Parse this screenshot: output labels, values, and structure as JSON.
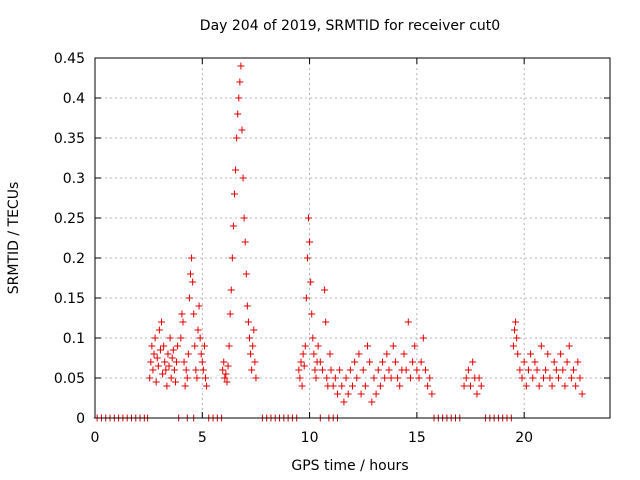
{
  "chart_data": {
    "type": "scatter",
    "title": "Day 204 of 2019, SRMTID for receiver cut0",
    "xlabel": "GPS time / hours",
    "ylabel": "SRMTID / TECUs",
    "xlim": [
      0,
      24
    ],
    "ylim": [
      0,
      0.45
    ],
    "xticks": [
      0,
      5,
      10,
      15,
      20
    ],
    "xtick_labels": [
      "0",
      "5",
      "10",
      "15",
      "20"
    ],
    "yticks": [
      0,
      0.05,
      0.1,
      0.15,
      0.2,
      0.25,
      0.3,
      0.35,
      0.4,
      0.45
    ],
    "ytick_labels": [
      "0",
      "0.05",
      "0.1",
      "0.15",
      "0.2",
      "0.25",
      "0.3",
      "0.35",
      "0.4",
      "0.45"
    ],
    "grid": true,
    "marker": "+",
    "marker_color": "#e00000",
    "series": [
      {
        "name": "SRMTID",
        "points": [
          [
            0.1,
            0
          ],
          [
            0.3,
            0
          ],
          [
            0.5,
            0
          ],
          [
            0.7,
            0
          ],
          [
            0.9,
            0
          ],
          [
            1.1,
            0
          ],
          [
            1.3,
            0
          ],
          [
            1.5,
            0
          ],
          [
            1.7,
            0
          ],
          [
            1.9,
            0
          ],
          [
            2.1,
            0
          ],
          [
            2.3,
            0
          ],
          [
            2.45,
            0
          ],
          [
            2.55,
            0.05
          ],
          [
            2.6,
            0.07
          ],
          [
            2.65,
            0.09
          ],
          [
            2.7,
            0.06
          ],
          [
            2.75,
            0.08
          ],
          [
            2.8,
            0.1
          ],
          [
            2.85,
            0.045
          ],
          [
            2.9,
            0.075
          ],
          [
            2.95,
            0.065
          ],
          [
            3.0,
            0.11
          ],
          [
            3.05,
            0.085
          ],
          [
            3.1,
            0.12
          ],
          [
            3.15,
            0.055
          ],
          [
            3.2,
            0.09
          ],
          [
            3.25,
            0.07
          ],
          [
            3.3,
            0.06
          ],
          [
            3.35,
            0.04
          ],
          [
            3.4,
            0.08
          ],
          [
            3.45,
            0.065
          ],
          [
            3.5,
            0.1
          ],
          [
            3.55,
            0.05
          ],
          [
            3.6,
            0.075
          ],
          [
            3.65,
            0.085
          ],
          [
            3.7,
            0.06
          ],
          [
            3.75,
            0.045
          ],
          [
            3.8,
            0.07
          ],
          [
            3.85,
            0.09
          ],
          [
            3.9,
            0
          ],
          [
            4.0,
            0.1
          ],
          [
            4.05,
            0.13
          ],
          [
            4.1,
            0.12
          ],
          [
            4.15,
            0.07
          ],
          [
            4.2,
            0.04
          ],
          [
            4.25,
            0.06
          ],
          [
            4.3,
            0.05
          ],
          [
            4.3,
            0
          ],
          [
            4.35,
            0.08
          ],
          [
            4.4,
            0.15
          ],
          [
            4.45,
            0.18
          ],
          [
            4.5,
            0.2
          ],
          [
            4.55,
            0.17
          ],
          [
            4.6,
            0.13
          ],
          [
            4.6,
            0
          ],
          [
            4.65,
            0.09
          ],
          [
            4.7,
            0.06
          ],
          [
            4.75,
            0.05
          ],
          [
            4.8,
            0.11
          ],
          [
            4.85,
            0.14
          ],
          [
            4.9,
            0.1
          ],
          [
            4.95,
            0.08
          ],
          [
            5.0,
            0.07
          ],
          [
            5.05,
            0.06
          ],
          [
            5.1,
            0.09
          ],
          [
            5.15,
            0.05
          ],
          [
            5.2,
            0.04
          ],
          [
            5.3,
            0
          ],
          [
            5.5,
            0
          ],
          [
            5.7,
            0
          ],
          [
            5.9,
            0
          ],
          [
            5.95,
            0.06
          ],
          [
            6.0,
            0.07
          ],
          [
            6.05,
            0.05
          ],
          [
            6.1,
            0.055
          ],
          [
            6.15,
            0.045
          ],
          [
            6.2,
            0.065
          ],
          [
            6.25,
            0.09
          ],
          [
            6.3,
            0.13
          ],
          [
            6.35,
            0.16
          ],
          [
            6.4,
            0.2
          ],
          [
            6.45,
            0.24
          ],
          [
            6.5,
            0.28
          ],
          [
            6.55,
            0.31
          ],
          [
            6.6,
            0.35
          ],
          [
            6.65,
            0.38
          ],
          [
            6.7,
            0.4
          ],
          [
            6.75,
            0.42
          ],
          [
            6.8,
            0.44
          ],
          [
            6.85,
            0.36
          ],
          [
            6.9,
            0.3
          ],
          [
            6.95,
            0.25
          ],
          [
            7.0,
            0.22
          ],
          [
            7.05,
            0.18
          ],
          [
            7.1,
            0.14
          ],
          [
            7.15,
            0.12
          ],
          [
            7.2,
            0.1
          ],
          [
            7.25,
            0.08
          ],
          [
            7.3,
            0.06
          ],
          [
            7.35,
            0.09
          ],
          [
            7.4,
            0.11
          ],
          [
            7.45,
            0.07
          ],
          [
            7.5,
            0.05
          ],
          [
            7.8,
            0
          ],
          [
            8.0,
            0
          ],
          [
            8.2,
            0
          ],
          [
            8.4,
            0
          ],
          [
            8.6,
            0
          ],
          [
            8.8,
            0
          ],
          [
            9.0,
            0
          ],
          [
            9.2,
            0
          ],
          [
            9.4,
            0
          ],
          [
            9.5,
            0.06
          ],
          [
            9.55,
            0.05
          ],
          [
            9.6,
            0.07
          ],
          [
            9.65,
            0.04
          ],
          [
            9.7,
            0.08
          ],
          [
            9.75,
            0.065
          ],
          [
            9.8,
            0.09
          ],
          [
            9.85,
            0.15
          ],
          [
            9.9,
            0.2
          ],
          [
            9.95,
            0.25
          ],
          [
            10.0,
            0.22
          ],
          [
            10.05,
            0.17
          ],
          [
            10.1,
            0.13
          ],
          [
            10.15,
            0.1
          ],
          [
            10.2,
            0.08
          ],
          [
            10.25,
            0.06
          ],
          [
            10.3,
            0.05
          ],
          [
            10.35,
            0.07
          ],
          [
            10.4,
            0.09
          ],
          [
            10.5,
            0.07
          ],
          [
            10.5,
            0
          ],
          [
            10.6,
            0.06
          ],
          [
            10.7,
            0.16
          ],
          [
            10.75,
            0.12
          ],
          [
            10.8,
            0.05
          ],
          [
            10.85,
            0.04
          ],
          [
            10.9,
            0
          ],
          [
            10.95,
            0.08
          ],
          [
            11.0,
            0.06
          ],
          [
            11.1,
            0.04
          ],
          [
            11.1,
            0
          ],
          [
            11.2,
            0.05
          ],
          [
            11.3,
            0.03
          ],
          [
            11.3,
            0
          ],
          [
            11.4,
            0.06
          ],
          [
            11.5,
            0.04
          ],
          [
            11.6,
            0.02
          ],
          [
            11.7,
            0.05
          ],
          [
            11.8,
            0.03
          ],
          [
            11.9,
            0.06
          ],
          [
            12.0,
            0.04
          ],
          [
            12.1,
            0.07
          ],
          [
            12.2,
            0.05
          ],
          [
            12.3,
            0.08
          ],
          [
            12.4,
            0.03
          ],
          [
            12.5,
            0.06
          ],
          [
            12.6,
            0.04
          ],
          [
            12.7,
            0.09
          ],
          [
            12.8,
            0.07
          ],
          [
            12.9,
            0.02
          ],
          [
            13.0,
            0.05
          ],
          [
            13.1,
            0.03
          ],
          [
            13.2,
            0.06
          ],
          [
            13.3,
            0.04
          ],
          [
            13.4,
            0.07
          ],
          [
            13.5,
            0.05
          ],
          [
            13.6,
            0.08
          ],
          [
            13.7,
            0.06
          ],
          [
            13.8,
            0.05
          ],
          [
            13.9,
            0.09
          ],
          [
            14.0,
            0.07
          ],
          [
            14.1,
            0.05
          ],
          [
            14.2,
            0.04
          ],
          [
            14.3,
            0.06
          ],
          [
            14.4,
            0.08
          ],
          [
            14.5,
            0.06
          ],
          [
            14.6,
            0.12
          ],
          [
            14.7,
            0.05
          ],
          [
            14.8,
            0.07
          ],
          [
            14.9,
            0.09
          ],
          [
            15.0,
            0.06
          ],
          [
            15.1,
            0.05
          ],
          [
            15.2,
            0.07
          ],
          [
            15.3,
            0.1
          ],
          [
            15.4,
            0.06
          ],
          [
            15.5,
            0.04
          ],
          [
            15.6,
            0.05
          ],
          [
            15.7,
            0.03
          ],
          [
            15.8,
            0
          ],
          [
            16.0,
            0
          ],
          [
            16.2,
            0
          ],
          [
            16.4,
            0
          ],
          [
            16.6,
            0
          ],
          [
            16.8,
            0
          ],
          [
            17.0,
            0
          ],
          [
            17.2,
            0.04
          ],
          [
            17.3,
            0.05
          ],
          [
            17.4,
            0.06
          ],
          [
            17.5,
            0.04
          ],
          [
            17.6,
            0.07
          ],
          [
            17.7,
            0.05
          ],
          [
            17.8,
            0.03
          ],
          [
            17.9,
            0.05
          ],
          [
            18.0,
            0.04
          ],
          [
            18.2,
            0
          ],
          [
            18.4,
            0
          ],
          [
            18.6,
            0
          ],
          [
            18.8,
            0
          ],
          [
            19.0,
            0
          ],
          [
            19.2,
            0
          ],
          [
            19.4,
            0
          ],
          [
            19.5,
            0.09
          ],
          [
            19.55,
            0.11
          ],
          [
            19.6,
            0.12
          ],
          [
            19.65,
            0.1
          ],
          [
            19.7,
            0.08
          ],
          [
            19.8,
            0.06
          ],
          [
            19.9,
            0.05
          ],
          [
            20.0,
            0.07
          ],
          [
            20.1,
            0.04
          ],
          [
            20.2,
            0.06
          ],
          [
            20.3,
            0.08
          ],
          [
            20.4,
            0.05
          ],
          [
            20.5,
            0.07
          ],
          [
            20.6,
            0.06
          ],
          [
            20.7,
            0.04
          ],
          [
            20.8,
            0.09
          ],
          [
            20.9,
            0.05
          ],
          [
            21.0,
            0.06
          ],
          [
            21.1,
            0.08
          ],
          [
            21.2,
            0.05
          ],
          [
            21.3,
            0.04
          ],
          [
            21.4,
            0.07
          ],
          [
            21.5,
            0.06
          ],
          [
            21.6,
            0.05
          ],
          [
            21.7,
            0.08
          ],
          [
            21.8,
            0.06
          ],
          [
            21.9,
            0.04
          ],
          [
            22.0,
            0.07
          ],
          [
            22.1,
            0.09
          ],
          [
            22.2,
            0.05
          ],
          [
            22.3,
            0.06
          ],
          [
            22.4,
            0.04
          ],
          [
            22.5,
            0.07
          ],
          [
            22.6,
            0.05
          ],
          [
            22.7,
            0.03
          ]
        ]
      }
    ]
  }
}
